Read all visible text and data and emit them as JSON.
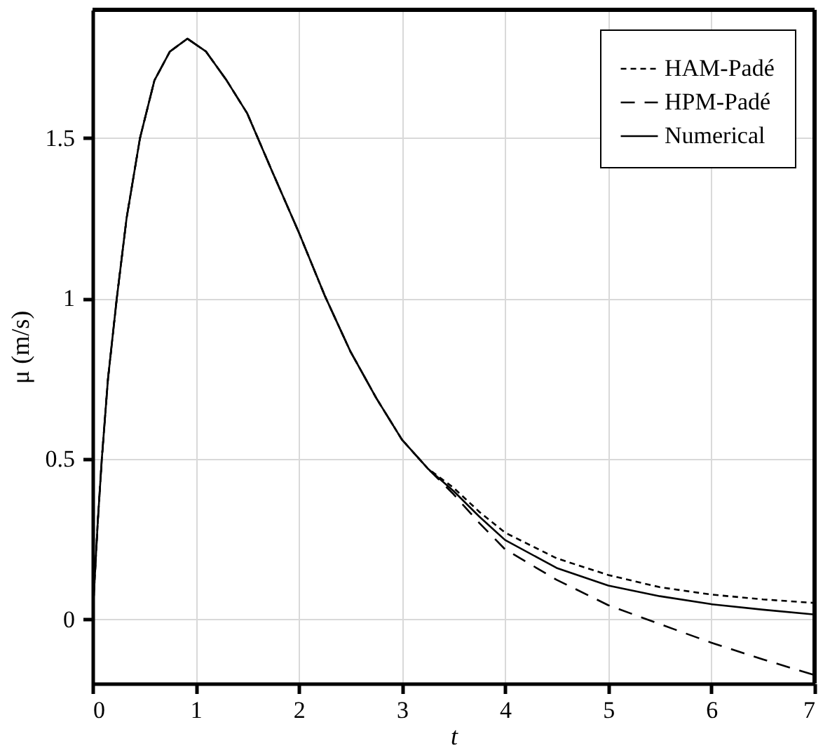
{
  "chart_data": {
    "type": "line",
    "xlabel": "t",
    "ylabel": "μ (m/s)",
    "xlim": [
      0,
      7
    ],
    "ylim": [
      -0.2,
      1.9
    ],
    "xticks": [
      0,
      1,
      2,
      3,
      4,
      5,
      6,
      7
    ],
    "yticks": [
      0,
      0.5,
      1,
      1.5
    ],
    "grid": true,
    "legend": "top right",
    "x": [
      0,
      0.05,
      0.09,
      0.15,
      0.235,
      0.33,
      0.46,
      0.6,
      0.75,
      0.92,
      1.1,
      1.3,
      1.5,
      1.75,
      2,
      2.25,
      2.5,
      2.75,
      3,
      3.25,
      3.5,
      3.75,
      4,
      4.5,
      5,
      5.5,
      6,
      6.5,
      7
    ],
    "series": [
      {
        "name": "HAM-Padé",
        "color": "#000000",
        "line_style": "dotted",
        "values": [
          0,
          0.3,
          0.5,
          0.75,
          1.0,
          1.25,
          1.5,
          1.68,
          1.77,
          1.81,
          1.77,
          1.68,
          1.577,
          1.39,
          1.206,
          1.01,
          0.835,
          0.69,
          0.56,
          0.47,
          0.41,
          0.335,
          0.27,
          0.19,
          0.138,
          0.1,
          0.077,
          0.062,
          0.051
        ]
      },
      {
        "name": "HPM-Padé",
        "color": "#000000",
        "line_style": "dashed",
        "values": [
          0,
          0.3,
          0.5,
          0.75,
          1.0,
          1.25,
          1.5,
          1.68,
          1.77,
          1.81,
          1.77,
          1.68,
          1.577,
          1.39,
          1.206,
          1.01,
          0.835,
          0.69,
          0.56,
          0.47,
          0.39,
          0.3,
          0.218,
          0.123,
          0.044,
          -0.015,
          -0.073,
          -0.125,
          -0.174
        ]
      },
      {
        "name": "Numerical",
        "color": "#000000",
        "line_style": "solid",
        "values": [
          0,
          0.3,
          0.5,
          0.75,
          1.0,
          1.25,
          1.5,
          1.68,
          1.77,
          1.81,
          1.77,
          1.68,
          1.577,
          1.39,
          1.206,
          1.01,
          0.835,
          0.69,
          0.56,
          0.47,
          0.4,
          0.32,
          0.247,
          0.16,
          0.105,
          0.072,
          0.047,
          0.03,
          0.015
        ]
      }
    ]
  }
}
